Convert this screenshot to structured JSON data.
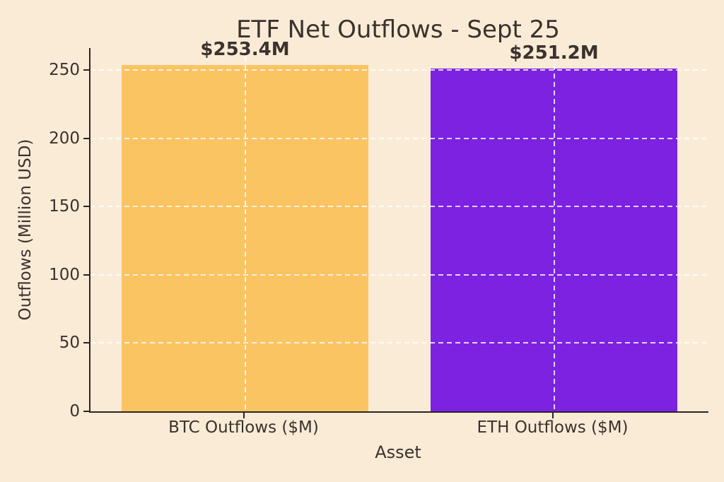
{
  "figure": {
    "background": "#faebd7",
    "text_color": "#3a322c",
    "spine_color": "#2a2522",
    "grid_color": "#ffffff",
    "grid_opacity": 0.8,
    "grid_style": "dashed"
  },
  "chart_data": {
    "type": "bar",
    "title": "ETF Net Outflows - Sept 25",
    "xlabel": "Asset",
    "ylabel": "Outflows (Million USD)",
    "categories": [
      "BTC Outflows ($M)",
      "ETH Outflows ($M)"
    ],
    "values": [
      253.4,
      251.2
    ],
    "bar_labels": [
      "$253.4M",
      "$251.2M"
    ],
    "bar_colors": [
      "#fbc463",
      "#7c22e0"
    ],
    "yticks": [
      0,
      50,
      100,
      150,
      200,
      250
    ],
    "ylim": [
      0,
      266
    ],
    "grid": "both",
    "legend": "none"
  }
}
